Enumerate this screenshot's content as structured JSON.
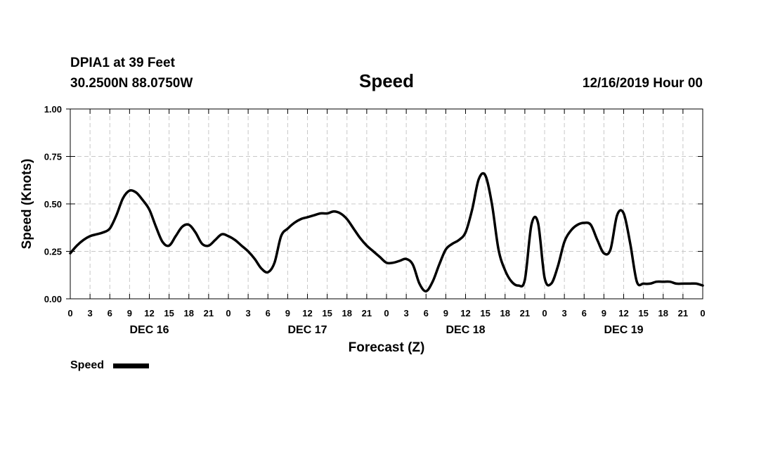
{
  "header": {
    "station": "DPIA1 at 39 Feet",
    "location": "30.2500N 88.0750W",
    "title": "Speed",
    "run": "12/16/2019 Hour 00"
  },
  "legend": {
    "label": "Speed"
  },
  "colors": {
    "line": "#000000",
    "grid": "#c8c8c8"
  },
  "chart_data": {
    "type": "line",
    "title": "Speed",
    "xlabel": "Forecast (Z)",
    "ylabel": "Speed (Knots)",
    "ylim": [
      0,
      1
    ],
    "yticks": [
      "0.00",
      "0.25",
      "0.50",
      "0.75",
      "1.00"
    ],
    "xticks": [
      "0",
      "3",
      "6",
      "9",
      "12",
      "15",
      "18",
      "21",
      "0",
      "3",
      "6",
      "9",
      "12",
      "15",
      "18",
      "21",
      "0",
      "3",
      "6",
      "9",
      "12",
      "15",
      "18",
      "21",
      "0",
      "3",
      "6",
      "9",
      "12",
      "15",
      "18",
      "21",
      "0"
    ],
    "day_labels": [
      {
        "hour": 12,
        "label": "DEC 16"
      },
      {
        "hour": 36,
        "label": "DEC 17"
      },
      {
        "hour": 60,
        "label": "DEC 18"
      },
      {
        "hour": 84,
        "label": "DEC 19"
      }
    ],
    "grid": true,
    "legend_position": "bottom-left",
    "series": [
      {
        "name": "Speed",
        "x": [
          0,
          1,
          2,
          3,
          4,
          5,
          6,
          7,
          8,
          9,
          10,
          11,
          12,
          13,
          14,
          15,
          16,
          17,
          18,
          19,
          20,
          21,
          22,
          23,
          24,
          25,
          26,
          27,
          28,
          29,
          30,
          31,
          32,
          33,
          34,
          35,
          36,
          37,
          38,
          39,
          40,
          41,
          42,
          43,
          44,
          45,
          46,
          47,
          48,
          49,
          50,
          51,
          52,
          53,
          54,
          55,
          56,
          57,
          58,
          59,
          60,
          61,
          62,
          63,
          64,
          65,
          66,
          67,
          68,
          69,
          70,
          71,
          72,
          73,
          74,
          75,
          76,
          77,
          78,
          79,
          80,
          81,
          82,
          83,
          84,
          85,
          86,
          87,
          88,
          89,
          90,
          91,
          92,
          93,
          94,
          95,
          96
        ],
        "values": [
          0.24,
          0.28,
          0.31,
          0.33,
          0.34,
          0.35,
          0.37,
          0.44,
          0.53,
          0.57,
          0.56,
          0.52,
          0.47,
          0.38,
          0.3,
          0.28,
          0.33,
          0.38,
          0.39,
          0.35,
          0.29,
          0.28,
          0.31,
          0.34,
          0.33,
          0.31,
          0.28,
          0.25,
          0.21,
          0.16,
          0.14,
          0.19,
          0.33,
          0.37,
          0.4,
          0.42,
          0.43,
          0.44,
          0.45,
          0.45,
          0.46,
          0.45,
          0.42,
          0.37,
          0.32,
          0.28,
          0.25,
          0.22,
          0.19,
          0.19,
          0.2,
          0.21,
          0.18,
          0.08,
          0.04,
          0.09,
          0.18,
          0.26,
          0.29,
          0.31,
          0.35,
          0.47,
          0.63,
          0.65,
          0.5,
          0.26,
          0.15,
          0.09,
          0.07,
          0.1,
          0.39,
          0.4,
          0.11,
          0.08,
          0.17,
          0.3,
          0.36,
          0.39,
          0.4,
          0.39,
          0.31,
          0.24,
          0.26,
          0.44,
          0.45,
          0.29,
          0.09,
          0.08,
          0.08,
          0.09,
          0.09,
          0.09,
          0.08,
          0.08,
          0.08,
          0.08,
          0.07
        ]
      }
    ]
  }
}
